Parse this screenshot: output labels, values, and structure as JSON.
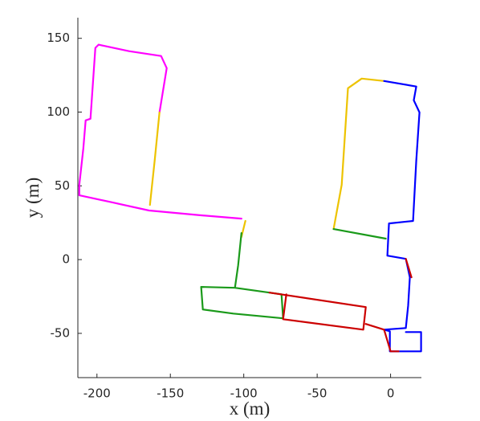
{
  "chart_data": {
    "type": "line",
    "xlabel": "x (m)",
    "ylabel": "y (m)",
    "xlim": [
      -213,
      21
    ],
    "ylim": [
      -80,
      164
    ],
    "xticks": [
      -200,
      -150,
      -100,
      -50,
      0
    ],
    "yticks": [
      -50,
      0,
      50,
      100,
      150
    ],
    "series": [
      {
        "color": "#ff00ff",
        "x": [
          -157.4,
          -152.5,
          -156.3,
          -178.1,
          -198.9,
          -201.1,
          -204.4,
          -207.7,
          -209.3,
          -212.0,
          -212.0,
          -189.1,
          -164.5,
          -129.0,
          -101.6
        ],
        "values": [
          99.8,
          129.8,
          138.0,
          141.3,
          145.7,
          143.5,
          95.5,
          94.4,
          75.3,
          50.7,
          43.6,
          38.7,
          33.3,
          30.0,
          27.8
        ]
      },
      {
        "color": "#edc300",
        "x": [
          -157.4,
          -160.7,
          -163.9,
          null,
          -101.6,
          -98.9,
          null,
          -38.8,
          -33.3,
          -29.0,
          -19.7,
          -4.4
        ],
        "values": [
          99.8,
          67.1,
          37.1,
          null,
          15.3,
          26.2,
          null,
          20.7,
          50.7,
          116.2,
          122.7,
          121.1
        ]
      },
      {
        "color": "#0000ff",
        "x": [
          -4.4,
          17.5,
          15.8,
          19.7,
          17.5,
          15.3,
          -1.1,
          -2.2,
          10.4,
          13.1,
          12.0,
          10.4,
          -4.4,
          -0.5,
          -0.5,
          20.8,
          20.8,
          10.4
        ],
        "values": [
          121.1,
          117.3,
          108.0,
          99.8,
          67.1,
          26.2,
          24.5,
          2.7,
          0.5,
          -12.0,
          -31.1,
          -46.4,
          -47.5,
          -48.6,
          -62.2,
          -62.2,
          -49.1,
          -49.1
        ]
      },
      {
        "color": "#1a9a1a",
        "x": [
          -38.8,
          -3.3,
          null,
          -101.6,
          -103.8,
          -106.0,
          -74.3,
          -73.2,
          -107.1,
          -127.9,
          -129.0,
          -106.0
        ],
        "values": [
          20.7,
          14.2,
          null,
          18.0,
          -3.8,
          -19.1,
          -23.5,
          -39.8,
          -36.6,
          -33.8,
          -18.5,
          -19.1
        ]
      },
      {
        "color": "#cc0000",
        "x": [
          -82.5,
          -16.9,
          -18.6,
          -73.2,
          -71.0,
          null,
          -16.9,
          -4.4,
          0.0,
          5.5,
          null,
          10.4,
          14.2
        ],
        "values": [
          -22.4,
          -32.2,
          -47.5,
          -40.4,
          -23.5,
          null,
          -43.6,
          -47.5,
          -62.2,
          -62.2,
          null,
          0.5,
          -12.0
        ]
      }
    ]
  }
}
